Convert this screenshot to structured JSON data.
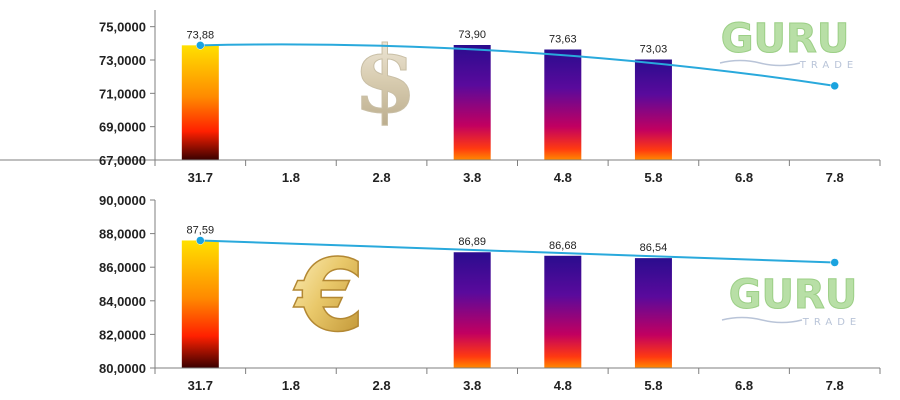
{
  "colors": {
    "trend_line": "#29a9dc",
    "trend_point": "#1aa3df",
    "axis": "#7f7f7f",
    "grid_tick": "#7f7f7f",
    "gold_bar_top": "#ffe000",
    "gold_bar_mid": "#ff2a00",
    "gold_bar_bottom": "#3a0000",
    "purple_bar_top": "#2b0a8c",
    "purple_bar_mid": "#b0006b",
    "purple_bar_bottom": "#ff6a00",
    "logo_green": "#b8dfa6",
    "logo_sub": "#b9c4d8"
  },
  "icons": {
    "top_panel": "dollar-sign-icon",
    "bottom_panel": "euro-sign-icon"
  },
  "logo": {
    "main": "GURU",
    "sub": "TRADE"
  },
  "chart_data": [
    {
      "type": "bar",
      "currency": "USD",
      "categories": [
        "31.7",
        "1.8",
        "2.8",
        "3.8",
        "4.8",
        "5.8",
        "6.8",
        "7.8"
      ],
      "y_tick_labels": [
        "67,0000",
        "69,0000",
        "71,0000",
        "73,0000",
        "75,0000"
      ],
      "ylim": [
        67,
        76
      ],
      "grid": false,
      "series": [
        {
          "kind": "bar",
          "values": [
            73.88,
            null,
            null,
            73.9,
            73.63,
            73.03,
            null,
            null
          ],
          "labels": [
            "73,88",
            "",
            "",
            "73,90",
            "73,63",
            "73,03",
            "",
            ""
          ],
          "styles": [
            "gold",
            "",
            "",
            "purple",
            "purple",
            "purple",
            "",
            ""
          ]
        },
        {
          "kind": "line",
          "points": [
            {
              "category": "31.7",
              "value": 73.88
            },
            {
              "category": "7.8",
              "value": 71.45
            }
          ],
          "control_value": 74.3
        }
      ]
    },
    {
      "type": "bar",
      "currency": "EUR",
      "categories": [
        "31.7",
        "1.8",
        "2.8",
        "3.8",
        "4.8",
        "5.8",
        "6.8",
        "7.8"
      ],
      "y_tick_labels": [
        "80,0000",
        "82,0000",
        "84,0000",
        "86,0000",
        "88,0000",
        "90,0000"
      ],
      "ylim": [
        80,
        90
      ],
      "grid": false,
      "series": [
        {
          "kind": "bar",
          "values": [
            87.59,
            null,
            null,
            86.89,
            86.68,
            86.54,
            null,
            null
          ],
          "labels": [
            "87,59",
            "",
            "",
            "86,89",
            "86,68",
            "86,54",
            "",
            ""
          ],
          "styles": [
            "gold",
            "",
            "",
            "purple",
            "purple",
            "purple",
            "",
            ""
          ]
        },
        {
          "kind": "line",
          "points": [
            {
              "category": "31.7",
              "value": 87.59
            },
            {
              "category": "7.8",
              "value": 86.28
            }
          ],
          "control_value": 86.9
        }
      ]
    }
  ]
}
